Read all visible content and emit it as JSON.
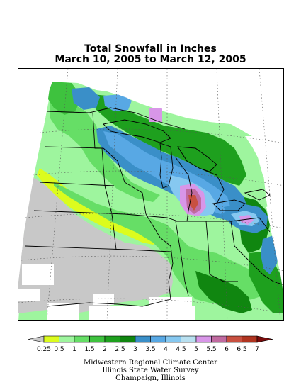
{
  "title_line1": "Total Snowfall in Inches",
  "title_line2": "March 10, 2005 to March 12, 2005",
  "legend": {
    "breaks": [
      "0.25",
      "0.5",
      "1",
      "1.5",
      "2",
      "2.5",
      "3",
      "3.5",
      "4",
      "4.5",
      "5",
      "5.5",
      "6",
      "6.5",
      "7"
    ],
    "colors": [
      "#c8c8c8",
      "#dcfc1e",
      "#9ef59e",
      "#66de66",
      "#3ec23e",
      "#1ea01e",
      "#108610",
      "#3a8fc8",
      "#58a8e4",
      "#86c8f0",
      "#b8e0f0",
      "#d896e8",
      "#c06aa0",
      "#c85040",
      "#b03420",
      "#7a0c0c"
    ]
  },
  "credits": {
    "line1": "Midwestern Regional Climate Center",
    "line2": "Illinois State Water Survey",
    "line3": "Champaign, Illinois"
  },
  "map": {
    "colors": {
      "missing": "#c8c8c8",
      "water": "#ffffff",
      "s025": "#dcfc1e",
      "s05": "#9ef59e",
      "s1": "#66de66",
      "s15": "#3ec23e",
      "s2": "#1ea01e",
      "s25": "#108610",
      "s3": "#3a8fc8",
      "s35": "#58a8e4",
      "s4": "#86c8f0",
      "s5": "#d896e8",
      "s55": "#c06aa0",
      "s6": "#c85040"
    }
  }
}
